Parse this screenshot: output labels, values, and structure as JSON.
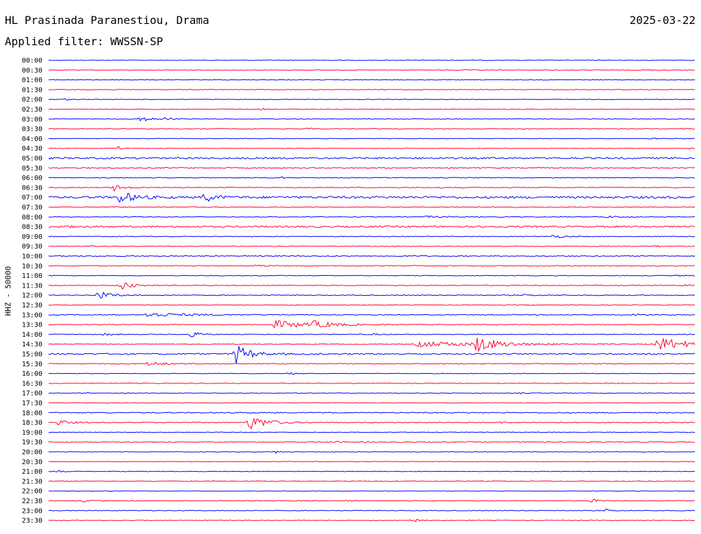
{
  "header": {
    "station": "HL Prasinada Paranestiou, Drama",
    "date": "2025-03-22",
    "filter": "Applied filter: WWSSN-SP"
  },
  "chart_data": {
    "type": "line",
    "title": "HL Prasinada Paranestiou, Drama",
    "ylabel": "HHZ - 50000",
    "colors": {
      "even_row": "#0000ff",
      "odd_row": "#ff0033"
    },
    "rows": [
      {
        "label": "00:00",
        "noise": 0.4,
        "events": []
      },
      {
        "label": "00:30",
        "noise": 0.5,
        "events": [
          {
            "t": 0.62,
            "amp": 0.6,
            "dur": 0.02
          },
          {
            "t": 0.92,
            "amp": 0.8,
            "dur": 0.03
          }
        ]
      },
      {
        "label": "01:00",
        "noise": 0.4,
        "events": []
      },
      {
        "label": "01:30",
        "noise": 0.5,
        "events": [
          {
            "t": 0.07,
            "amp": 0.7,
            "dur": 0.01
          }
        ]
      },
      {
        "label": "02:00",
        "noise": 0.4,
        "events": [
          {
            "t": 0.025,
            "amp": 1.2,
            "dur": 0.01
          }
        ]
      },
      {
        "label": "02:30",
        "noise": 0.5,
        "events": [
          {
            "t": 0.33,
            "amp": 1.5,
            "dur": 0.01
          }
        ]
      },
      {
        "label": "03:00",
        "noise": 0.5,
        "events": [
          {
            "t": 0.14,
            "amp": 3.5,
            "dur": 0.02
          },
          {
            "t": 0.18,
            "amp": 1.5,
            "dur": 0.01
          }
        ]
      },
      {
        "label": "03:30",
        "noise": 0.6,
        "events": [
          {
            "t": 0.4,
            "amp": 0.6,
            "dur": 0.02
          },
          {
            "t": 0.98,
            "amp": 0.7,
            "dur": 0.03
          }
        ]
      },
      {
        "label": "04:00",
        "noise": 0.4,
        "events": [
          {
            "t": 0.93,
            "amp": 1.0,
            "dur": 0.01
          }
        ]
      },
      {
        "label": "04:30",
        "noise": 0.4,
        "events": [
          {
            "t": 0.108,
            "amp": 2.5,
            "dur": 0.004
          },
          {
            "t": 0.99,
            "amp": 1.0,
            "dur": 0.01
          }
        ]
      },
      {
        "label": "05:00",
        "noise": 1.2,
        "events": []
      },
      {
        "label": "05:30",
        "noise": 0.8,
        "events": []
      },
      {
        "label": "06:00",
        "noise": 0.5,
        "events": [
          {
            "t": 0.36,
            "amp": 1.2,
            "dur": 0.005
          }
        ]
      },
      {
        "label": "06:30",
        "noise": 0.6,
        "events": [
          {
            "t": 0.1,
            "amp": 5.0,
            "dur": 0.015
          },
          {
            "t": 0.6,
            "amp": 0.7,
            "dur": 0.02
          }
        ]
      },
      {
        "label": "07:00",
        "noise": 1.5,
        "events": [
          {
            "t": 0.11,
            "amp": 9.0,
            "dur": 0.02
          },
          {
            "t": 0.24,
            "amp": 7.0,
            "dur": 0.015
          }
        ]
      },
      {
        "label": "07:30",
        "noise": 0.6,
        "events": []
      },
      {
        "label": "08:00",
        "noise": 0.5,
        "events": [
          {
            "t": 0.58,
            "amp": 1.2,
            "dur": 0.05
          },
          {
            "t": 0.86,
            "amp": 1.2,
            "dur": 0.03
          }
        ]
      },
      {
        "label": "08:30",
        "noise": 1.2,
        "events": [
          {
            "t": 0.02,
            "amp": 1.5,
            "dur": 0.02
          }
        ]
      },
      {
        "label": "09:00",
        "noise": 0.5,
        "events": [
          {
            "t": 0.78,
            "amp": 3.0,
            "dur": 0.015
          }
        ]
      },
      {
        "label": "09:30",
        "noise": 0.5,
        "events": [
          {
            "t": 0.065,
            "amp": 1.5,
            "dur": 0.005
          },
          {
            "t": 0.94,
            "amp": 1.0,
            "dur": 0.01
          }
        ]
      },
      {
        "label": "10:00",
        "noise": 0.7,
        "events": []
      },
      {
        "label": "10:30",
        "noise": 0.6,
        "events": [
          {
            "t": 0.32,
            "amp": 1.2,
            "dur": 0.02
          }
        ]
      },
      {
        "label": "11:00",
        "noise": 0.5,
        "events": [
          {
            "t": 0.97,
            "amp": 1.0,
            "dur": 0.01
          }
        ]
      },
      {
        "label": "11:30",
        "noise": 0.6,
        "events": [
          {
            "t": 0.113,
            "amp": 9.0,
            "dur": 0.012
          },
          {
            "t": 0.98,
            "amp": 1.0,
            "dur": 0.015
          }
        ]
      },
      {
        "label": "12:00",
        "noise": 0.6,
        "events": [
          {
            "t": 0.075,
            "amp": 6.0,
            "dur": 0.02
          },
          {
            "t": 0.73,
            "amp": 1.0,
            "dur": 0.02
          }
        ]
      },
      {
        "label": "12:30",
        "noise": 0.5,
        "events": []
      },
      {
        "label": "13:00",
        "noise": 0.6,
        "events": [
          {
            "t": 0.15,
            "amp": 3.5,
            "dur": 0.06
          },
          {
            "t": 0.9,
            "amp": 0.9,
            "dur": 0.03
          }
        ]
      },
      {
        "label": "13:30",
        "noise": 0.5,
        "events": [
          {
            "t": 0.35,
            "amp": 6.0,
            "dur": 0.05
          },
          {
            "t": 0.41,
            "amp": 4.0,
            "dur": 0.03
          }
        ]
      },
      {
        "label": "14:00",
        "noise": 0.5,
        "events": [
          {
            "t": 0.085,
            "amp": 1.5,
            "dur": 0.02
          },
          {
            "t": 0.22,
            "amp": 5.0,
            "dur": 0.012
          },
          {
            "t": 0.5,
            "amp": 0.8,
            "dur": 0.02
          }
        ]
      },
      {
        "label": "14:30",
        "noise": 0.5,
        "events": [
          {
            "t": 0.57,
            "amp": 4.0,
            "dur": 0.1
          },
          {
            "t": 0.66,
            "amp": 11.0,
            "dur": 0.03
          },
          {
            "t": 0.94,
            "amp": 11.0,
            "dur": 0.04
          }
        ]
      },
      {
        "label": "15:00",
        "noise": 1.0,
        "events": [
          {
            "t": 0.288,
            "amp": 15.0,
            "dur": 0.02
          }
        ]
      },
      {
        "label": "15:30",
        "noise": 0.6,
        "events": [
          {
            "t": 0.155,
            "amp": 3.5,
            "dur": 0.02
          }
        ]
      },
      {
        "label": "16:00",
        "noise": 0.4,
        "events": [
          {
            "t": 0.37,
            "amp": 2.5,
            "dur": 0.01
          }
        ]
      },
      {
        "label": "16:30",
        "noise": 0.5,
        "events": []
      },
      {
        "label": "17:00",
        "noise": 0.4,
        "events": [
          {
            "t": 0.06,
            "amp": 1.0,
            "dur": 0.005
          },
          {
            "t": 0.73,
            "amp": 1.0,
            "dur": 0.005
          }
        ]
      },
      {
        "label": "17:30",
        "noise": 0.4,
        "events": []
      },
      {
        "label": "18:00",
        "noise": 0.7,
        "events": [
          {
            "t": 0.3,
            "amp": 1.2,
            "dur": 0.005
          }
        ]
      },
      {
        "label": "18:30",
        "noise": 0.6,
        "events": [
          {
            "t": 0.015,
            "amp": 4.0,
            "dur": 0.015
          },
          {
            "t": 0.31,
            "amp": 11.0,
            "dur": 0.025
          },
          {
            "t": 0.7,
            "amp": 1.0,
            "dur": 0.01
          }
        ]
      },
      {
        "label": "19:00",
        "noise": 0.4,
        "events": []
      },
      {
        "label": "19:30",
        "noise": 0.7,
        "events": [
          {
            "t": 0.43,
            "amp": 1.0,
            "dur": 0.02
          }
        ]
      },
      {
        "label": "20:00",
        "noise": 0.4,
        "events": [
          {
            "t": 0.35,
            "amp": 2.0,
            "dur": 0.006
          }
        ]
      },
      {
        "label": "20:30",
        "noise": 0.4,
        "events": []
      },
      {
        "label": "21:00",
        "noise": 0.4,
        "events": [
          {
            "t": 0.015,
            "amp": 1.0,
            "dur": 0.01
          }
        ]
      },
      {
        "label": "21:30",
        "noise": 0.5,
        "events": []
      },
      {
        "label": "22:00",
        "noise": 0.3,
        "events": []
      },
      {
        "label": "22:30",
        "noise": 0.5,
        "events": [
          {
            "t": 0.05,
            "amp": 1.5,
            "dur": 0.02
          },
          {
            "t": 0.34,
            "amp": 1.0,
            "dur": 0.01
          },
          {
            "t": 0.46,
            "amp": 1.0,
            "dur": 0.01
          },
          {
            "t": 0.84,
            "amp": 2.5,
            "dur": 0.01
          }
        ]
      },
      {
        "label": "23:00",
        "noise": 0.5,
        "events": [
          {
            "t": 0.86,
            "amp": 2.0,
            "dur": 0.01
          }
        ]
      },
      {
        "label": "23:30",
        "noise": 0.4,
        "events": [
          {
            "t": 0.56,
            "amp": 4.0,
            "dur": 0.01
          }
        ]
      }
    ]
  }
}
